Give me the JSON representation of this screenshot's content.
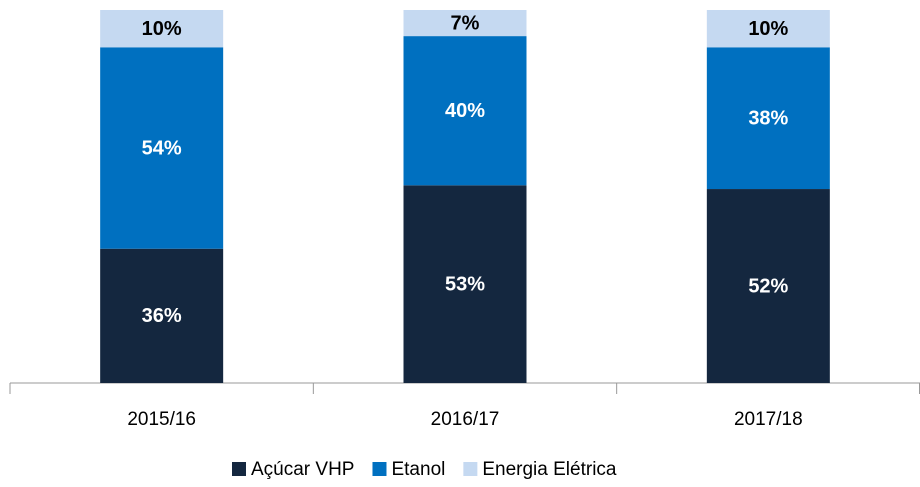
{
  "chart_data": {
    "type": "stacked_bar",
    "categories": [
      "2015/16",
      "2016/17",
      "2017/18"
    ],
    "series": [
      {
        "name": "Açúcar VHP",
        "color": "#14273f",
        "values": [
          36,
          53,
          52
        ],
        "value_labels": [
          "36%",
          "53%",
          "52%"
        ]
      },
      {
        "name": "Etanol",
        "color": "#0070c0",
        "values": [
          54,
          40,
          38
        ],
        "value_labels": [
          "54%",
          "40%",
          "38%"
        ]
      },
      {
        "name": "Energia Elétrica",
        "color": "#c5d9f1",
        "values": [
          10,
          7,
          10
        ],
        "value_labels": [
          "10%",
          "7%",
          "10%"
        ]
      }
    ]
  }
}
